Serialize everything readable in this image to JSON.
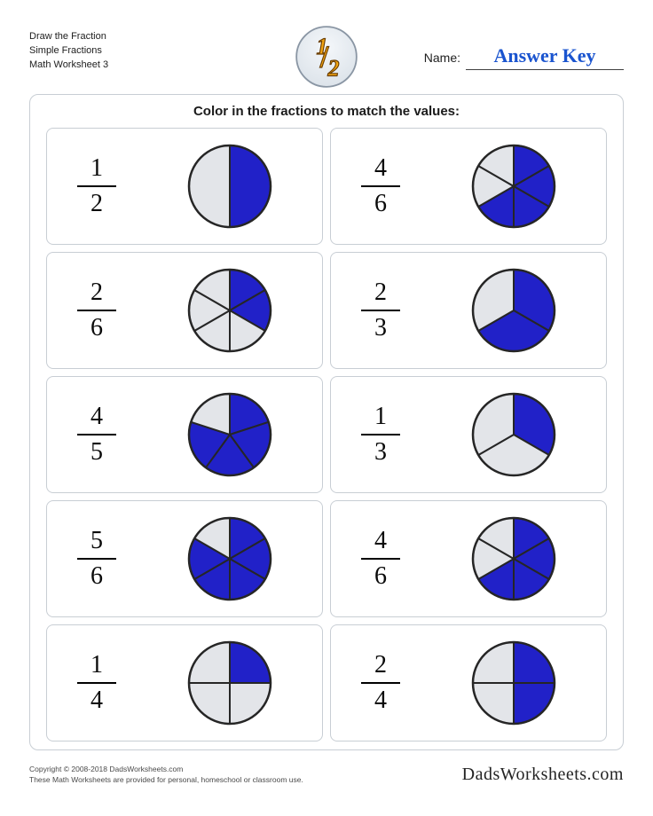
{
  "header": {
    "line1": "Draw the Fraction",
    "line2": "Simple Fractions",
    "line3": "Math Worksheet 3",
    "name_label": "Name:",
    "answer_key": "Answer Key"
  },
  "logo": {
    "one": "1",
    "slash": "/",
    "two": "2",
    "border_color": "#8a96a4",
    "bg_light": "#f4f7fa",
    "bg_dark": "#dbe2e9",
    "glyph_fill": "#f3a512",
    "glyph_stroke": "#6a3d00"
  },
  "panel": {
    "instructions": "Color in the fractions to match the values:"
  },
  "style": {
    "cell_border": "#c8ced4",
    "pie_fill": "#2121c8",
    "pie_empty": "#e3e5e9",
    "pie_stroke": "#262626",
    "pie_radius": 46,
    "answer_key_color": "#1a54cf"
  },
  "cells": [
    {
      "numerator": 1,
      "denominator": 2
    },
    {
      "numerator": 4,
      "denominator": 6
    },
    {
      "numerator": 2,
      "denominator": 6
    },
    {
      "numerator": 2,
      "denominator": 3
    },
    {
      "numerator": 4,
      "denominator": 5
    },
    {
      "numerator": 1,
      "denominator": 3
    },
    {
      "numerator": 5,
      "denominator": 6
    },
    {
      "numerator": 4,
      "denominator": 6
    },
    {
      "numerator": 1,
      "denominator": 4
    },
    {
      "numerator": 2,
      "denominator": 4
    }
  ],
  "footer": {
    "copyright": "Copyright © 2008-2018 DadsWorksheets.com",
    "disclaimer": "These Math Worksheets are provided for personal, homeschool or classroom use.",
    "brand": "DadsWorksheets.com"
  }
}
